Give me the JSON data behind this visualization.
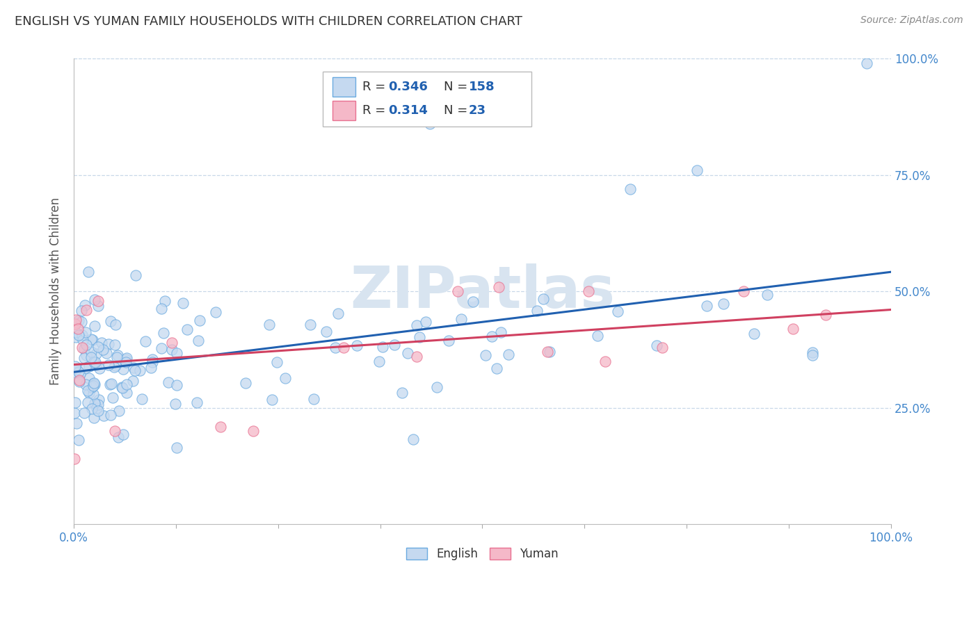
{
  "title": "ENGLISH VS YUMAN FAMILY HOUSEHOLDS WITH CHILDREN CORRELATION CHART",
  "source_text": "Source: ZipAtlas.com",
  "ylabel": "Family Households with Children",
  "watermark": "ZIPatlas",
  "english_R": 0.346,
  "english_N": 158,
  "yuman_R": 0.314,
  "yuman_N": 23,
  "english_fill": "#c5d9f0",
  "english_edge": "#6aaae0",
  "yuman_fill": "#f5b8c8",
  "yuman_edge": "#e87090",
  "english_line_color": "#2060b0",
  "yuman_line_color": "#d04060",
  "legend_text_color": "#2060b0",
  "title_color": "#333333",
  "axis_label_color": "#555555",
  "tick_label_color": "#4488cc",
  "grid_color": "#c8d8e8",
  "watermark_color": "#d8e4f0"
}
